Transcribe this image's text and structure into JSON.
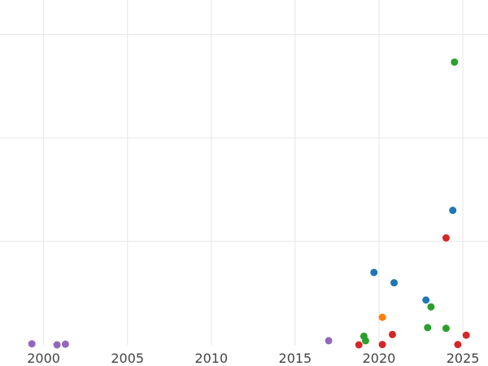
{
  "chart_data": {
    "type": "scatter",
    "title": "",
    "xlabel": "",
    "ylabel": "",
    "xlim": [
      1997.4,
      2026.5
    ],
    "ylim": [
      0,
      1.0
    ],
    "grid": true,
    "legend": "none",
    "x_ticks": [
      2000,
      2005,
      2010,
      2015,
      2020,
      2025
    ],
    "x_tick_labels": [
      "2000",
      "2005",
      "2010",
      "2015",
      "2020",
      "2025"
    ],
    "y_gridlines": [
      0.3,
      0.6,
      0.9
    ],
    "series": [
      {
        "color": "#1f77b4",
        "points": [
          [
            2019.7,
            0.21
          ],
          [
            2020.9,
            0.18
          ],
          [
            2022.8,
            0.13
          ],
          [
            2024.4,
            0.39
          ]
        ]
      },
      {
        "color": "#ff7f0e",
        "points": [
          [
            2020.2,
            0.08
          ]
        ]
      },
      {
        "color": "#2ca02c",
        "points": [
          [
            2019.1,
            0.025
          ],
          [
            2019.2,
            0.012
          ],
          [
            2022.9,
            0.05
          ],
          [
            2023.1,
            0.11
          ],
          [
            2024.0,
            0.048
          ],
          [
            2024.5,
            0.82
          ]
        ]
      },
      {
        "color": "#d62728",
        "points": [
          [
            2018.8,
            0.0
          ],
          [
            2020.2,
            0.001
          ],
          [
            2020.8,
            0.03
          ],
          [
            2024.0,
            0.31
          ],
          [
            2024.7,
            0.001
          ],
          [
            2025.2,
            0.028
          ]
        ]
      },
      {
        "color": "#9467bd",
        "points": [
          [
            1999.3,
            0.003
          ],
          [
            2000.8,
            0.0
          ],
          [
            2001.3,
            0.002
          ],
          [
            2017.0,
            0.012
          ]
        ]
      }
    ]
  }
}
